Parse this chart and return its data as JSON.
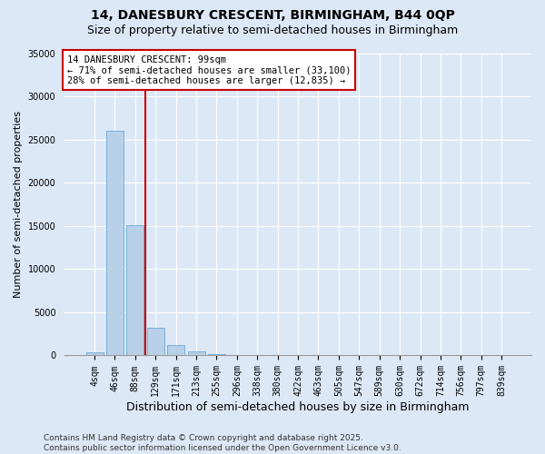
{
  "title1": "14, DANESBURY CRESCENT, BIRMINGHAM, B44 0QP",
  "title2": "Size of property relative to semi-detached houses in Birmingham",
  "xlabel": "Distribution of semi-detached houses by size in Birmingham",
  "ylabel": "Number of semi-detached properties",
  "categories": [
    "4sqm",
    "46sqm",
    "88sqm",
    "129sqm",
    "171sqm",
    "213sqm",
    "255sqm",
    "296sqm",
    "338sqm",
    "380sqm",
    "422sqm",
    "463sqm",
    "505sqm",
    "547sqm",
    "589sqm",
    "630sqm",
    "672sqm",
    "714sqm",
    "756sqm",
    "797sqm",
    "839sqm"
  ],
  "values": [
    350,
    26100,
    15100,
    3200,
    1200,
    450,
    200,
    50,
    0,
    0,
    0,
    0,
    0,
    0,
    0,
    0,
    0,
    0,
    0,
    0,
    0
  ],
  "bar_color": "#b8d0e8",
  "bar_edge_color": "#5a9fd4",
  "vline_color": "#cc0000",
  "vline_pos": 2.5,
  "annotation_text": "14 DANESBURY CRESCENT: 99sqm\n← 71% of semi-detached houses are smaller (33,100)\n28% of semi-detached houses are larger (12,835) →",
  "annotation_box_facecolor": "#ffffff",
  "annotation_box_edgecolor": "#cc0000",
  "ylim": [
    0,
    35000
  ],
  "yticks": [
    0,
    5000,
    10000,
    15000,
    20000,
    25000,
    30000,
    35000
  ],
  "bg_color": "#dce8f5",
  "plot_bg_color": "#dce8f5",
  "grid_color": "#ffffff",
  "footer": "Contains HM Land Registry data © Crown copyright and database right 2025.\nContains public sector information licensed under the Open Government Licence v3.0.",
  "title1_fontsize": 10,
  "title2_fontsize": 9,
  "tick_fontsize": 7,
  "ylabel_fontsize": 8,
  "xlabel_fontsize": 9,
  "annotation_fontsize": 7.5,
  "footer_fontsize": 6.5
}
